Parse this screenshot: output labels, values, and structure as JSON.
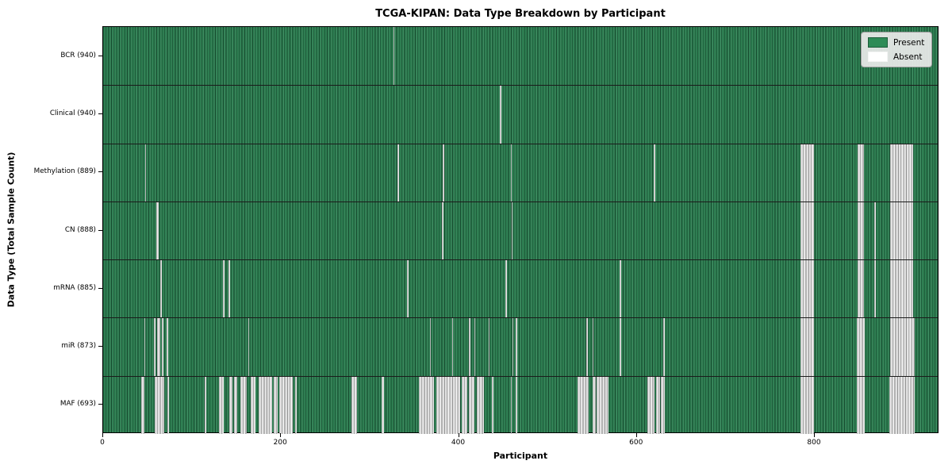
{
  "chart_data": {
    "type": "heatmap",
    "title": "TCGA-KIPAN: Data Type Breakdown by Participant",
    "xlabel": "Participant",
    "ylabel": "Data Type (Total Sample Count)",
    "x_ticks": [
      0,
      200,
      400,
      600,
      800
    ],
    "x_range": [
      0,
      940
    ],
    "grid": false,
    "legend_position": "upper right",
    "legend": [
      {
        "label": "Present",
        "color": "#2e8b57"
      },
      {
        "label": "Absent",
        "color": "#ffffff"
      }
    ],
    "value_encoding": {
      "present": 1,
      "absent": 0
    },
    "rows": [
      {
        "name": "BCR",
        "label": "BCR (940)",
        "total_samples": 940,
        "absent_runs": [
          [
            326,
            1
          ]
        ]
      },
      {
        "name": "Clinical",
        "label": "Clinical (940)",
        "total_samples": 940,
        "absent_runs": [
          [
            446,
            1
          ]
        ]
      },
      {
        "name": "Methylation",
        "label": "Methylation (889)",
        "total_samples": 889,
        "absent_runs": [
          [
            47,
            1
          ],
          [
            331,
            1
          ],
          [
            382,
            1
          ],
          [
            458,
            1
          ],
          [
            619,
            1
          ],
          [
            784,
            15
          ],
          [
            848,
            7
          ],
          [
            885,
            26
          ]
        ]
      },
      {
        "name": "CN",
        "label": "CN (888)",
        "total_samples": 888,
        "absent_runs": [
          [
            60,
            2
          ],
          [
            381,
            1
          ],
          [
            459,
            1
          ],
          [
            784,
            15
          ],
          [
            848,
            7
          ],
          [
            867,
            1
          ],
          [
            885,
            26
          ]
        ]
      },
      {
        "name": "mRNA",
        "label": "mRNA (885)",
        "total_samples": 885,
        "absent_runs": [
          [
            64,
            2
          ],
          [
            135,
            1
          ],
          [
            141,
            1
          ],
          [
            342,
            1
          ],
          [
            452,
            1
          ],
          [
            581,
            1
          ],
          [
            784,
            15
          ],
          [
            848,
            7
          ],
          [
            867,
            1
          ],
          [
            885,
            26
          ]
        ]
      },
      {
        "name": "miR",
        "label": "miR (873)",
        "total_samples": 873,
        "absent_runs": [
          [
            46,
            1
          ],
          [
            57,
            2
          ],
          [
            61,
            3
          ],
          [
            66,
            1
          ],
          [
            71,
            2
          ],
          [
            163,
            1
          ],
          [
            367,
            1
          ],
          [
            392,
            1
          ],
          [
            411,
            1
          ],
          [
            417,
            1
          ],
          [
            433,
            1
          ],
          [
            460,
            1
          ],
          [
            464,
            1
          ],
          [
            543,
            1
          ],
          [
            550,
            1
          ],
          [
            581,
            1
          ],
          [
            630,
            1
          ],
          [
            784,
            15
          ],
          [
            847,
            9
          ],
          [
            885,
            27
          ]
        ]
      },
      {
        "name": "MAF",
        "label": "MAF (693)",
        "total_samples": 693,
        "absent_runs": [
          [
            43,
            3
          ],
          [
            58,
            6
          ],
          [
            64,
            5
          ],
          [
            72,
            2
          ],
          [
            114,
            2
          ],
          [
            130,
            6
          ],
          [
            142,
            3
          ],
          [
            147,
            4
          ],
          [
            154,
            7
          ],
          [
            166,
            5
          ],
          [
            175,
            15
          ],
          [
            192,
            4
          ],
          [
            198,
            15
          ],
          [
            216,
            2
          ],
          [
            279,
            6
          ],
          [
            313,
            3
          ],
          [
            355,
            17
          ],
          [
            375,
            26
          ],
          [
            403,
            6
          ],
          [
            411,
            6
          ],
          [
            420,
            8
          ],
          [
            437,
            1
          ],
          [
            458,
            1
          ],
          [
            464,
            1
          ],
          [
            533,
            13
          ],
          [
            550,
            4
          ],
          [
            555,
            13
          ],
          [
            612,
            8
          ],
          [
            622,
            4
          ],
          [
            627,
            4
          ],
          [
            784,
            15
          ],
          [
            847,
            9
          ],
          [
            884,
            28
          ]
        ]
      }
    ]
  },
  "colors": {
    "present": "#2e8b57",
    "present_dark_edge": "#1d5c3a",
    "absent": "#ffffff",
    "absent_shade": "#c2c2c2",
    "row_separator": "#1b1b1b",
    "frame": "#000000",
    "legend_background": "#e9e9e9"
  }
}
